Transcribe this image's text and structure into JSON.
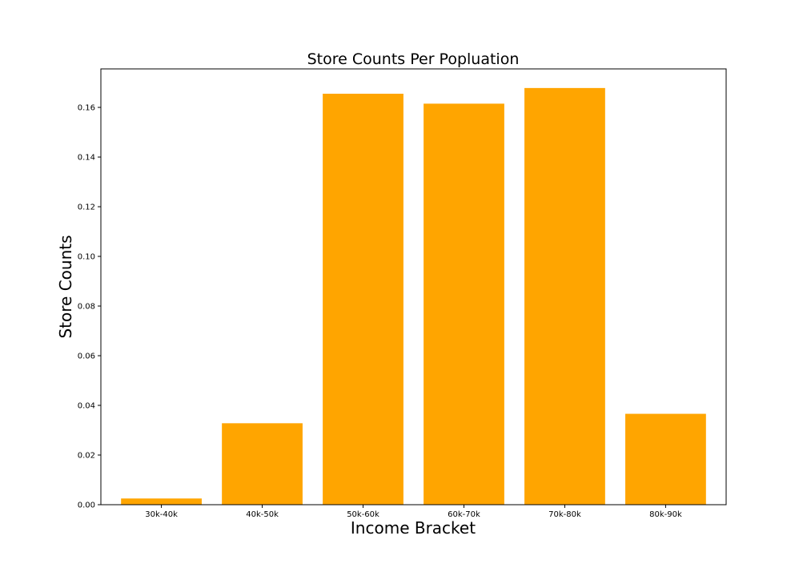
{
  "chart_data": {
    "type": "bar",
    "title": "Store Counts Per Popluation",
    "xlabel": "Income Bracket",
    "ylabel": "Store Counts",
    "categories": [
      "30k-40k",
      "40k-50k",
      "50k-60k",
      "60k-70k",
      "70k-80k",
      "80k-90k"
    ],
    "values": [
      0.0025,
      0.0328,
      0.1655,
      0.1615,
      0.1678,
      0.0366
    ],
    "ylim": [
      0,
      0.1755
    ],
    "yticks": [
      "0.00",
      "0.02",
      "0.04",
      "0.06",
      "0.08",
      "0.10",
      "0.12",
      "0.14",
      "0.16"
    ],
    "bar_color": "#FFA500",
    "grid": false,
    "legend": "none"
  }
}
